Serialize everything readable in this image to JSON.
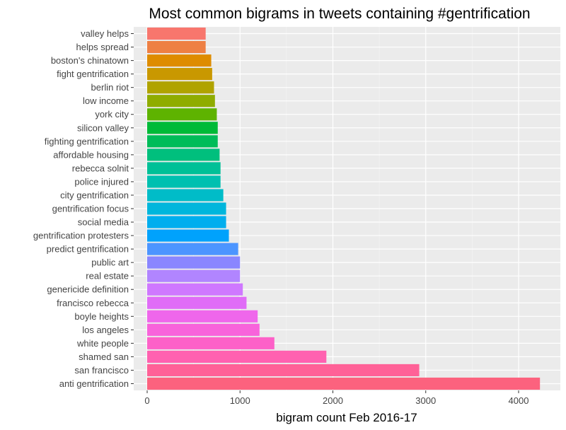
{
  "chart_data": {
    "type": "bar",
    "orientation": "horizontal",
    "title": "Most common bigrams in tweets containing #gentrification",
    "xlabel": "bigram count Feb 2016-17",
    "ylabel": "",
    "xlim": [
      0,
      4400
    ],
    "xticks": [
      0,
      1000,
      2000,
      3000,
      4000
    ],
    "grid": true,
    "legend": "none",
    "background": "#ebebeb",
    "categories": [
      "anti gentrification",
      "san francisco",
      "shamed san",
      "white people",
      "los angeles",
      "boyle heights",
      "francisco rebecca",
      "genericide definition",
      "real estate",
      "public art",
      "predict gentrification",
      "gentrification protesters",
      "social media",
      "gentrification focus",
      "city gentrification",
      "police injured",
      "rebecca solnit",
      "affordable housing",
      "fighting gentrification",
      "silicon valley",
      "york city",
      "low income",
      "berlin riot",
      "fight gentrification",
      "boston's chinatown",
      "helps spread",
      "valley helps"
    ],
    "values": [
      4230,
      2930,
      1930,
      1370,
      1210,
      1190,
      1070,
      1030,
      1000,
      1000,
      980,
      880,
      850,
      850,
      820,
      790,
      790,
      780,
      760,
      760,
      750,
      730,
      720,
      700,
      690,
      630,
      630
    ],
    "colors": [
      "#f8766d",
      "#ee8044",
      "#de8c00",
      "#c99800",
      "#b0a300",
      "#8fac00",
      "#5eb300",
      "#00ba38",
      "#00bc59",
      "#00bf7d",
      "#00c097",
      "#00c0b0",
      "#00bcc8",
      "#00b6dc",
      "#00aeee",
      "#00a2fc",
      "#4c95ff",
      "#8a86ff",
      "#b185ff",
      "#cf78ff",
      "#e06cf7",
      "#ef67eb",
      "#f863db",
      "#fd61c8",
      "#ff61b0",
      "#ff6197",
      "#fc627e"
    ]
  }
}
